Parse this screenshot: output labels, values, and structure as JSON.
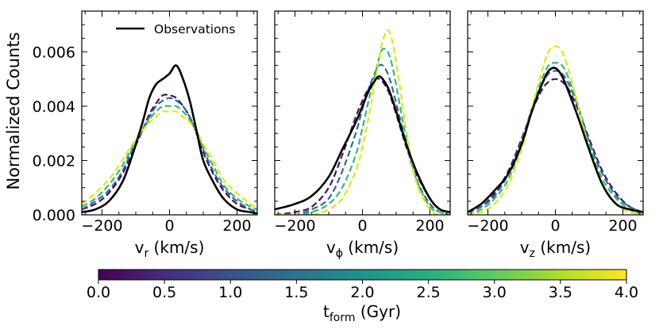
{
  "figure": {
    "ylabel": "Normalized Counts",
    "colorbar": {
      "label_main": "t",
      "label_sub": "form",
      "label_tail": " (Gyr)",
      "vmin": 0.0,
      "vmax": 4.0,
      "ticks": [
        "0.0",
        "0.5",
        "1.0",
        "1.5",
        "2.0",
        "2.5",
        "3.0",
        "3.5",
        "4.0"
      ],
      "colormap": "viridis"
    },
    "legend": {
      "label": "Observations",
      "placement": "top-right of first panel"
    }
  },
  "colors": {
    "observations": "#000000",
    "t0_5": "#471164",
    "t1_5": "#30688e",
    "t2_5": "#35b779",
    "t3_8": "#e5e419"
  },
  "chart_data": [
    {
      "type": "line",
      "panel": "v_r",
      "xlabel_main": "v",
      "xlabel_sub": "r",
      "xlabel_tail": " (km/s)",
      "xlim": [
        -260,
        260
      ],
      "ylim": [
        0,
        0.0075
      ],
      "xticks": [
        "-200",
        "0",
        "200"
      ],
      "yticks": [
        "0.000",
        "0.002",
        "0.004",
        "0.006"
      ],
      "x": [
        -260,
        -220,
        -180,
        -140,
        -110,
        -80,
        -60,
        -40,
        -20,
        0,
        20,
        40,
        60,
        80,
        100,
        130,
        160,
        200,
        240,
        260
      ],
      "series": [
        {
          "name": "Observations",
          "style": "solid",
          "values": [
            0.0001,
            0.0002,
            0.0005,
            0.0012,
            0.0022,
            0.0034,
            0.0043,
            0.0048,
            0.005,
            0.0052,
            0.0055,
            0.005,
            0.0042,
            0.0031,
            0.002,
            0.0012,
            0.0006,
            0.0002,
            0.0001,
            5e-05
          ]
        },
        {
          "name": "t_form = 0.5 Gyr",
          "style": "dashed",
          "values": [
            0.0002,
            0.0004,
            0.0008,
            0.0015,
            0.0023,
            0.0031,
            0.0037,
            0.0041,
            0.0044,
            0.0044,
            0.0043,
            0.004,
            0.0036,
            0.003,
            0.0023,
            0.0015,
            0.0009,
            0.0004,
            0.0002,
            0.0001
          ]
        },
        {
          "name": "t_form = 1.5 Gyr",
          "style": "dashed",
          "values": [
            0.0002,
            0.0005,
            0.0009,
            0.0016,
            0.0024,
            0.0031,
            0.0036,
            0.004,
            0.0042,
            0.0043,
            0.0042,
            0.004,
            0.0036,
            0.003,
            0.0024,
            0.0016,
            0.001,
            0.0005,
            0.0002,
            0.0001
          ]
        },
        {
          "name": "t_form = 2.5 Gyr",
          "style": "dashed",
          "values": [
            0.0003,
            0.0006,
            0.0011,
            0.0018,
            0.0025,
            0.0031,
            0.0035,
            0.0038,
            0.004,
            0.004,
            0.004,
            0.0038,
            0.0035,
            0.0031,
            0.0025,
            0.0018,
            0.0011,
            0.0006,
            0.0003,
            0.0002
          ]
        },
        {
          "name": "t_form = 3.8 Gyr",
          "style": "dashed",
          "values": [
            0.0004,
            0.0008,
            0.0013,
            0.002,
            0.0026,
            0.0031,
            0.0034,
            0.0036,
            0.0038,
            0.0038,
            0.0038,
            0.0036,
            0.0034,
            0.0031,
            0.0026,
            0.002,
            0.0013,
            0.0008,
            0.0004,
            0.0002
          ]
        }
      ]
    },
    {
      "type": "line",
      "panel": "v_phi",
      "xlabel_main": "v",
      "xlabel_sub": "ϕ",
      "xlabel_tail": " (km/s)",
      "xlim": [
        -260,
        260
      ],
      "ylim": [
        0,
        0.0075
      ],
      "xticks": [
        "-200",
        "0",
        "200"
      ],
      "yticks": [],
      "x": [
        -260,
        -200,
        -150,
        -100,
        -60,
        -20,
        0,
        20,
        40,
        50,
        60,
        75,
        90,
        110,
        130,
        160,
        200,
        230,
        260
      ],
      "series": [
        {
          "name": "Observations",
          "style": "solid",
          "values": [
            0.0002,
            0.0004,
            0.0007,
            0.0014,
            0.0024,
            0.0034,
            0.004,
            0.0046,
            0.005,
            0.0051,
            0.005,
            0.0047,
            0.0042,
            0.0034,
            0.0026,
            0.0016,
            0.0006,
            0.0002,
            0.0001
          ]
        },
        {
          "name": "t_form = 0.5 Gyr",
          "style": "dashed",
          "values": [
            0.0,
            0.0001,
            0.0003,
            0.001,
            0.0022,
            0.0036,
            0.0042,
            0.0047,
            0.005,
            0.005,
            0.0049,
            0.0046,
            0.0041,
            0.0033,
            0.0025,
            0.0015,
            0.0006,
            0.0002,
            0.0001
          ]
        },
        {
          "name": "t_form = 1.5 Gyr",
          "style": "dashed",
          "values": [
            0.0,
            0.0,
            0.0002,
            0.0006,
            0.0016,
            0.003,
            0.0039,
            0.0047,
            0.0053,
            0.0055,
            0.0055,
            0.0052,
            0.0046,
            0.0036,
            0.0026,
            0.0013,
            0.0004,
            0.0001,
            0.0
          ]
        },
        {
          "name": "t_form = 2.5 Gyr",
          "style": "dashed",
          "values": [
            0.0,
            0.0,
            0.0001,
            0.0004,
            0.001,
            0.0022,
            0.0032,
            0.0043,
            0.0053,
            0.0058,
            0.0061,
            0.006,
            0.0054,
            0.0041,
            0.0028,
            0.0013,
            0.0003,
            0.0001,
            0.0
          ]
        },
        {
          "name": "t_form = 3.8 Gyr",
          "style": "dashed",
          "values": [
            0.0,
            0.0,
            0.0,
            0.0002,
            0.0006,
            0.0016,
            0.0025,
            0.0037,
            0.0051,
            0.0058,
            0.0064,
            0.0068,
            0.0063,
            0.0048,
            0.0031,
            0.0012,
            0.0002,
            0.0,
            0.0
          ]
        }
      ]
    },
    {
      "type": "line",
      "panel": "v_z",
      "xlabel_main": "v",
      "xlabel_sub": "z",
      "xlabel_tail": " (km/s)",
      "xlim": [
        -260,
        260
      ],
      "ylim": [
        0,
        0.0075
      ],
      "xticks": [
        "-200",
        "0",
        "200"
      ],
      "yticks": [],
      "x": [
        -260,
        -220,
        -180,
        -140,
        -100,
        -70,
        -40,
        -20,
        0,
        20,
        40,
        70,
        100,
        140,
        180,
        220,
        260
      ],
      "series": [
        {
          "name": "Observations",
          "style": "solid",
          "values": [
            0.0001,
            0.0004,
            0.0009,
            0.0015,
            0.0026,
            0.0038,
            0.0048,
            0.0053,
            0.0054,
            0.0051,
            0.0045,
            0.0035,
            0.0024,
            0.0011,
            0.0004,
            0.0002,
            0.0001
          ]
        },
        {
          "name": "t_form = 0.5 Gyr",
          "style": "dashed",
          "values": [
            0.0001,
            0.0003,
            0.0008,
            0.0016,
            0.0028,
            0.0038,
            0.0046,
            0.0049,
            0.005,
            0.0049,
            0.0046,
            0.0038,
            0.0028,
            0.0016,
            0.0008,
            0.0003,
            0.0001
          ]
        },
        {
          "name": "t_form = 1.5 Gyr",
          "style": "dashed",
          "values": [
            0.0001,
            0.0003,
            0.0007,
            0.0015,
            0.0027,
            0.0039,
            0.0048,
            0.0052,
            0.0053,
            0.0052,
            0.0048,
            0.0039,
            0.0027,
            0.0015,
            0.0007,
            0.0003,
            0.0001
          ]
        },
        {
          "name": "t_form = 2.5 Gyr",
          "style": "dashed",
          "values": [
            0.0,
            0.0002,
            0.0006,
            0.0013,
            0.0026,
            0.0039,
            0.005,
            0.0055,
            0.0056,
            0.0055,
            0.005,
            0.0039,
            0.0026,
            0.0013,
            0.0006,
            0.0002,
            0.0
          ]
        },
        {
          "name": "t_form = 3.8 Gyr",
          "style": "dashed",
          "values": [
            0.0,
            0.0001,
            0.0004,
            0.0011,
            0.0024,
            0.0039,
            0.0053,
            0.006,
            0.0062,
            0.006,
            0.0053,
            0.0039,
            0.0024,
            0.0011,
            0.0004,
            0.0001,
            0.0
          ]
        }
      ]
    }
  ]
}
